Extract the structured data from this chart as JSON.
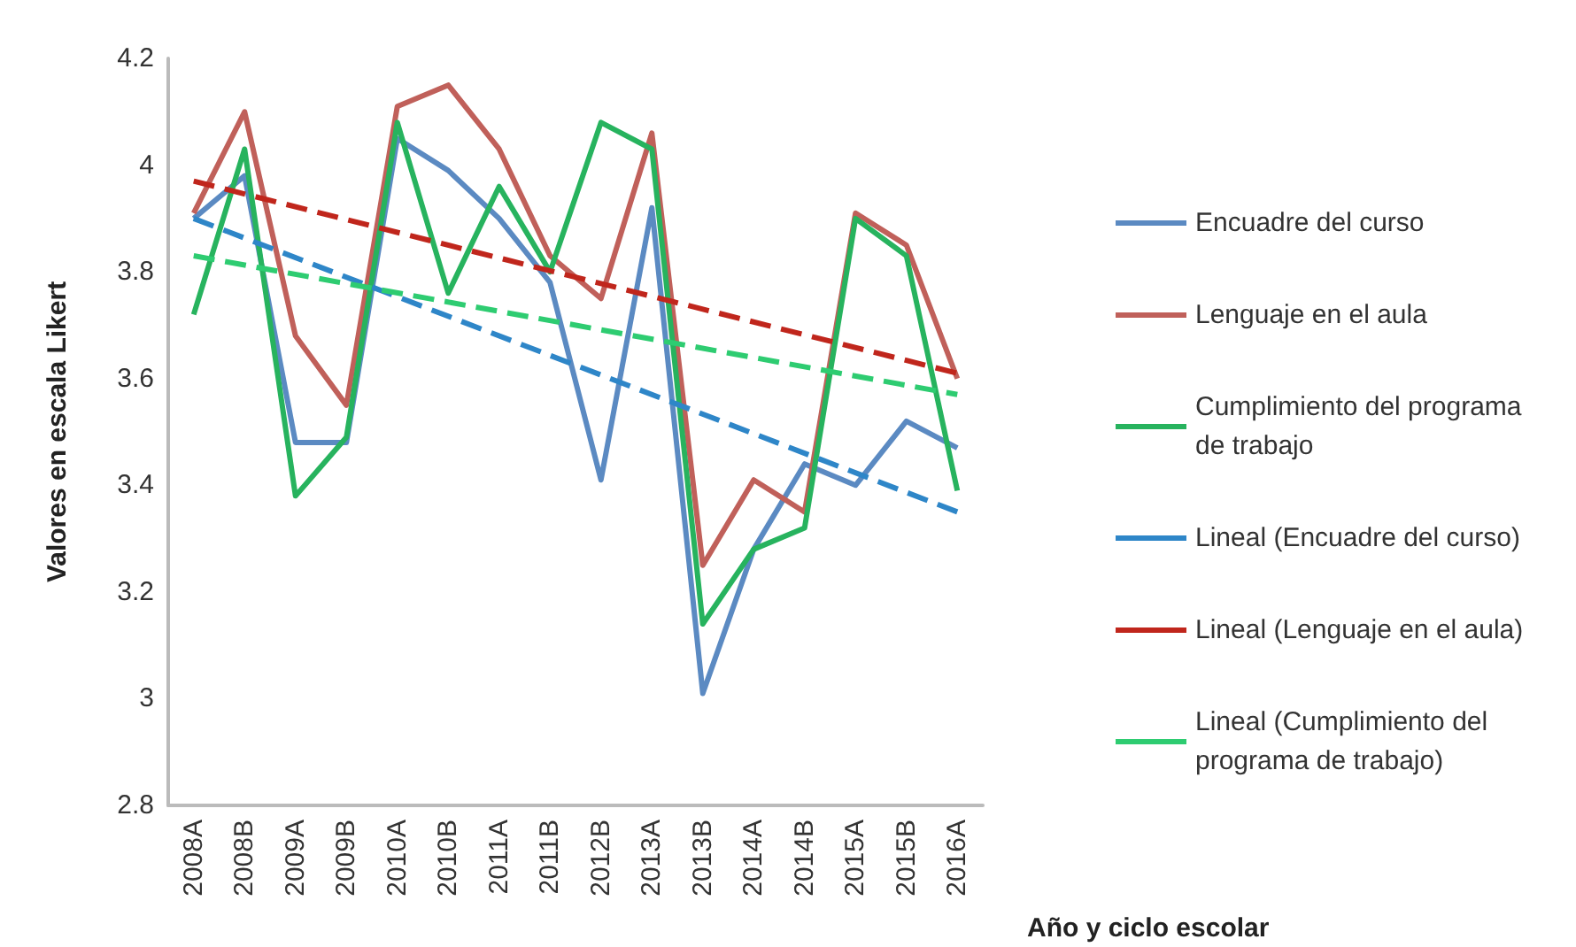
{
  "chart_data": {
    "type": "line",
    "ylabel": "Valores en escala Likert",
    "xlabel": "Año y ciclo escolar",
    "categories": [
      "2008A",
      "2008B",
      "2009A",
      "2009B",
      "2010A",
      "2010B",
      "2011A",
      "2011B",
      "2012B",
      "2013A",
      "2013B",
      "2014A",
      "2014B",
      "2015A",
      "2015B",
      "2016A"
    ],
    "ylim": [
      2.8,
      4.2
    ],
    "yticks": [
      {
        "value": 2.8,
        "label": "2.8"
      },
      {
        "value": 3,
        "label": "3"
      },
      {
        "value": 3.2,
        "label": "3.2"
      },
      {
        "value": 3.4,
        "label": "3.4"
      },
      {
        "value": 3.6,
        "label": "3.6"
      },
      {
        "value": 3.8,
        "label": "3.8"
      },
      {
        "value": 4,
        "label": "4"
      },
      {
        "value": 4.2,
        "label": "4.2"
      }
    ],
    "grid": false,
    "legend": "right",
    "marker": "none",
    "series": [
      {
        "name": "Encuadre del curso",
        "color": "#5b8ac2",
        "line_style": "solid",
        "values": [
          3.9,
          3.98,
          3.48,
          3.48,
          4.05,
          3.99,
          3.9,
          3.78,
          3.41,
          3.92,
          3.01,
          3.28,
          3.44,
          3.4,
          3.52,
          3.47
        ]
      },
      {
        "name": "Lenguaje en el aula",
        "color": "#c0605a",
        "line_style": "solid",
        "values": [
          3.91,
          4.1,
          3.68,
          3.55,
          4.11,
          4.15,
          4.03,
          3.83,
          3.75,
          4.06,
          3.25,
          3.41,
          3.35,
          3.91,
          3.85,
          3.6
        ]
      },
      {
        "name": "Cumplimiento del programa de trabajo",
        "color": "#27b35e",
        "line_style": "solid",
        "values": [
          3.72,
          4.03,
          3.38,
          3.49,
          4.08,
          3.76,
          3.96,
          3.8,
          4.08,
          4.03,
          3.14,
          3.28,
          3.32,
          3.9,
          3.83,
          3.39
        ]
      },
      {
        "name": "Lineal (Encuadre del curso)",
        "color": "#2e86c8",
        "line_style": "dashed",
        "x": [
          "2008A",
          "2016A"
        ],
        "values": [
          3.9,
          3.35
        ]
      },
      {
        "name": "Lineal (Lenguaje en el aula)",
        "color": "#c0261c",
        "line_style": "dashed",
        "x": [
          "2008A",
          "2016A"
        ],
        "values": [
          3.97,
          3.61
        ]
      },
      {
        "name": "Lineal (Cumplimiento del programa de trabajo)",
        "color": "#2ecc71",
        "line_style": "dashed",
        "x": [
          "2008A",
          "2016A"
        ],
        "values": [
          3.83,
          3.57
        ]
      }
    ]
  }
}
